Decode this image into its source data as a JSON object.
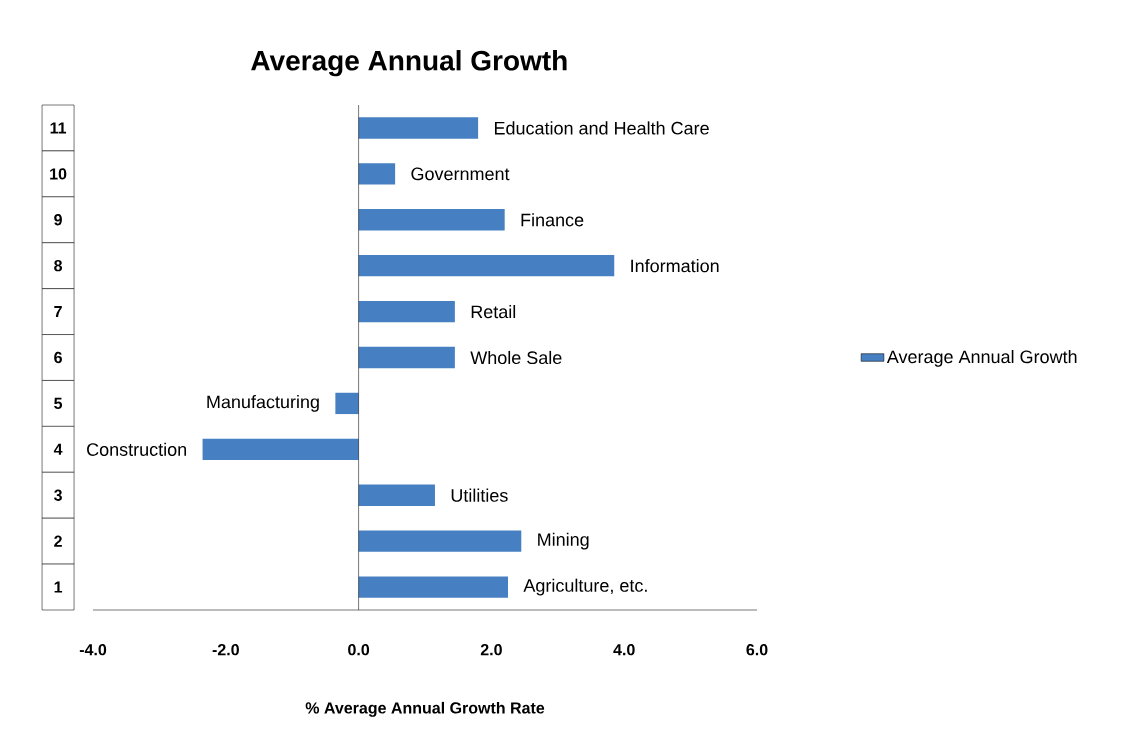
{
  "chart_data": {
    "type": "bar",
    "orientation": "horizontal",
    "title": "Average Annual Growth",
    "xlabel": "% Average Annual Growth Rate",
    "categories": [
      "11",
      "10",
      "9",
      "8",
      "7",
      "6",
      "5",
      "4",
      "3",
      "2",
      "1"
    ],
    "series": [
      {
        "name": "Average Annual Growth",
        "color": "#4680c2",
        "values": [
          1.8,
          0.55,
          2.2,
          3.85,
          1.45,
          1.45,
          -0.35,
          -2.35,
          1.15,
          2.45,
          2.25
        ]
      }
    ],
    "annotations": [
      {
        "text": "Education and Health Care",
        "x": 1.8,
        "y": "11"
      },
      {
        "text": "Government",
        "x": 0.55,
        "y": "10"
      },
      {
        "text": "Finance",
        "x": 2.2,
        "y": "9"
      },
      {
        "text": "Information",
        "x": 3.85,
        "y": "8"
      },
      {
        "text": "Retail",
        "x": 1.45,
        "y": "7"
      },
      {
        "text": "Whole Sale",
        "x": 1.45,
        "y": "6"
      },
      {
        "text": "Manufacturing",
        "x": -0.35,
        "y": "5"
      },
      {
        "text": "Construction",
        "x": -2.35,
        "y": "4"
      },
      {
        "text": "Utilities",
        "x": 1.15,
        "y": "3"
      },
      {
        "text": "Mining",
        "x": 2.45,
        "y": "2"
      },
      {
        "text": "Agriculture, etc.",
        "x": 2.25,
        "y": "1"
      }
    ],
    "xlim": [
      -4,
      6
    ],
    "xticks": [
      {
        "value": -4,
        "label": "-4.0"
      },
      {
        "value": -2,
        "label": "-2.0"
      },
      {
        "value": 0,
        "label": "0.0"
      },
      {
        "value": 2,
        "label": "2.0"
      },
      {
        "value": 4,
        "label": "4.0"
      },
      {
        "value": 6,
        "label": "6.0"
      }
    ],
    "legend": "right"
  }
}
